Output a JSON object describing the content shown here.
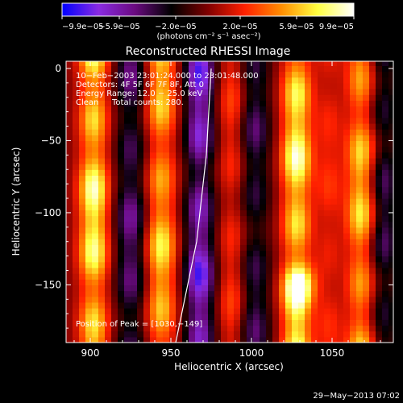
{
  "chart_data": {
    "type": "heatmap",
    "title": "Reconstructed RHESSI Image",
    "xlabel": "Heliocentric X (arcsec)",
    "ylabel": "Heliocentric Y (arcsec)",
    "xlim": [
      885,
      1088
    ],
    "ylim": [
      -190,
      5
    ],
    "x_ticks": [
      900,
      950,
      1000,
      1050
    ],
    "y_ticks": [
      0,
      -50,
      -100,
      -150
    ],
    "x_tick_labels": [
      "900",
      "950",
      "1000",
      "1050"
    ],
    "y_tick_labels": [
      "0",
      "−50",
      "−100",
      "−150"
    ],
    "colorbar": {
      "min": -9.9e-05,
      "max": 9.9e-05,
      "tick_labels": [
        "−9.9e−05",
        "−5.9e−05",
        "−2.0e−05",
        "2.0e−05",
        "5.9e−05",
        "9.9e−05"
      ],
      "unit_label": "(photons cm⁻² s⁻¹ asec⁻²)",
      "colormap": [
        "#0000ff",
        "#8a2be2",
        "#6a0a80",
        "#000000",
        "#800000",
        "#ff2000",
        "#ff8c00",
        "#ffff40",
        "#ffffff"
      ]
    },
    "annotations": {
      "time": "10−Feb−2003 23:01:24.000 to 23:01:48.000",
      "detectors": "Detectors: 4F 5F 6F 7F 8F, Att 0",
      "energy": "Energy Range: 12.0 − 25.0 keV",
      "method": "Clean",
      "total_counts": "Total counts: 280.",
      "peak": "Position of Peak = [1030,−149]"
    },
    "peak": {
      "x": 1030,
      "y": -149
    },
    "band_centers_x": [
      902,
      925,
      944,
      968,
      988,
      1002,
      1028,
      1048,
      1068,
      1082
    ],
    "band_values": [
      1.0,
      -0.6,
      0.8,
      -0.9,
      0.35,
      -0.5,
      1.0,
      0.3,
      0.8,
      -0.5
    ],
    "limb_curve": [
      {
        "x": 953,
        "y": -190
      },
      {
        "x": 966,
        "y": -120
      },
      {
        "x": 972,
        "y": -60
      },
      {
        "x": 975,
        "y": 0
      }
    ]
  },
  "footer": {
    "timestamp": "29−May−2013 07:02"
  }
}
